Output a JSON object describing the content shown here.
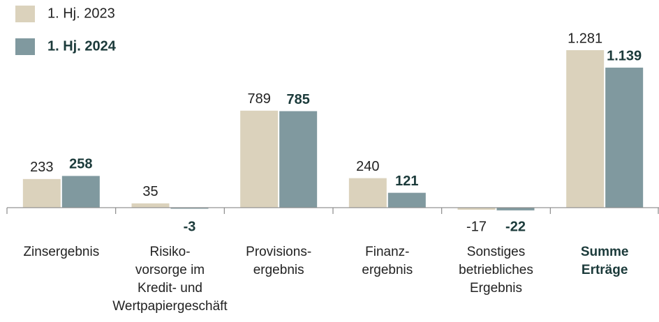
{
  "chart_data": {
    "type": "bar",
    "categories": [
      "Zinsergebnis",
      "Risiko-\nvorsorge im\nKredit- und\nWertpapiergeschäft",
      "Provisions-\nergebnis",
      "Finanz-\nergebnis",
      "Sonstiges\nbetriebliches\nErgebnis",
      "Summe\nErträge"
    ],
    "series": [
      {
        "name": "1. Hj. 2023",
        "color": "#dbd2bc",
        "values": [
          233,
          35,
          789,
          240,
          -17,
          1281
        ],
        "value_labels": [
          "233",
          "35",
          "789",
          "240",
          "-17",
          "1.281"
        ]
      },
      {
        "name": "1. Hj. 2024",
        "color": "#80999f",
        "values": [
          258,
          -3,
          785,
          121,
          -22,
          1139
        ],
        "value_labels": [
          "258",
          "-3",
          "785",
          "121",
          "-22",
          "1.139"
        ]
      }
    ],
    "ylim": [
      -100,
      1400
    ]
  }
}
